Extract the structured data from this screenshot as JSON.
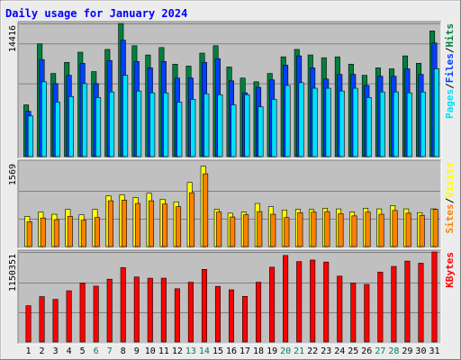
{
  "title": "Daily usage for January 2024",
  "colors": {
    "hits": "#008040",
    "files": "#0040ff",
    "pages": "#00e0ff",
    "visits": "#ffff00",
    "sites": "#ff8000",
    "kbytes": "#ff0000",
    "title": "#0000ff",
    "weekend_label": "#00805c",
    "weekday_label": "#000000",
    "panel_bg": "#c0c0c0",
    "page_bg": "#ececec"
  },
  "chart_data": [
    {
      "type": "bar",
      "panel": "top",
      "max_label": "14416",
      "ylim": [
        0,
        14416
      ],
      "categories": [
        "1",
        "2",
        "3",
        "4",
        "5",
        "6",
        "7",
        "8",
        "9",
        "10",
        "11",
        "12",
        "13",
        "14",
        "15",
        "16",
        "17",
        "18",
        "19",
        "20",
        "21",
        "22",
        "23",
        "24",
        "25",
        "26",
        "27",
        "28",
        "29",
        "30",
        "31"
      ],
      "weekend_days": [
        "6",
        "7",
        "13",
        "14",
        "20",
        "21",
        "27",
        "28"
      ],
      "series": [
        {
          "name": "Hits",
          "values": [
            5600,
            12200,
            9000,
            10200,
            11300,
            9200,
            11600,
            14400,
            12000,
            11000,
            11800,
            10000,
            9800,
            11200,
            12000,
            9700,
            8500,
            8100,
            9000,
            10800,
            11600,
            11000,
            10700,
            10800,
            10000,
            8800,
            9600,
            9500,
            10900,
            10100,
            13600
          ]
        },
        {
          "name": "Files",
          "values": [
            4900,
            10500,
            7900,
            8800,
            10100,
            7900,
            10400,
            12600,
            10300,
            9600,
            10300,
            8500,
            8500,
            10200,
            10600,
            8200,
            6900,
            7500,
            8300,
            9900,
            10900,
            9600,
            8400,
            8900,
            8900,
            7700,
            8700,
            8700,
            9500,
            8900,
            12300
          ]
        },
        {
          "name": "Pages",
          "values": [
            4400,
            8100,
            5900,
            6500,
            7900,
            6400,
            7000,
            8800,
            7100,
            6900,
            6900,
            5900,
            6200,
            6800,
            6700,
            5600,
            6700,
            5400,
            6200,
            7700,
            8000,
            7400,
            7400,
            7100,
            7400,
            6400,
            7000,
            7000,
            6900,
            7000,
            9500
          ]
        }
      ]
    },
    {
      "type": "bar",
      "panel": "middle",
      "max_label": "1569",
      "ylim": [
        0,
        1569
      ],
      "categories": [
        "1",
        "2",
        "3",
        "4",
        "5",
        "6",
        "7",
        "8",
        "9",
        "10",
        "11",
        "12",
        "13",
        "14",
        "15",
        "16",
        "17",
        "18",
        "19",
        "20",
        "21",
        "22",
        "23",
        "24",
        "25",
        "26",
        "27",
        "28",
        "29",
        "30",
        "31"
      ],
      "series": [
        {
          "name": "Visits",
          "values": [
            560,
            640,
            600,
            690,
            590,
            690,
            940,
            960,
            910,
            990,
            880,
            830,
            1190,
            1490,
            690,
            620,
            640,
            800,
            740,
            680,
            690,
            690,
            710,
            700,
            640,
            710,
            700,
            760,
            700,
            630,
            700
          ]
        },
        {
          "name": "Sites",
          "values": [
            460,
            530,
            500,
            560,
            490,
            540,
            850,
            860,
            800,
            850,
            790,
            740,
            1000,
            1350,
            640,
            550,
            590,
            650,
            600,
            540,
            630,
            640,
            650,
            610,
            570,
            640,
            600,
            670,
            620,
            580,
            690
          ]
        }
      ]
    },
    {
      "type": "bar",
      "panel": "bottom",
      "max_label": "1150351",
      "ylim": [
        0,
        1150351
      ],
      "categories": [
        "1",
        "2",
        "3",
        "4",
        "5",
        "6",
        "7",
        "8",
        "9",
        "10",
        "11",
        "12",
        "13",
        "14",
        "15",
        "16",
        "17",
        "18",
        "19",
        "20",
        "21",
        "22",
        "23",
        "24",
        "25",
        "26",
        "27",
        "28",
        "29",
        "30",
        "31"
      ],
      "series": [
        {
          "name": "KBytes",
          "values": [
            464000,
            580000,
            545000,
            655000,
            754000,
            714000,
            803000,
            951000,
            831000,
            816000,
            816000,
            681000,
            764000,
            928000,
            711000,
            667000,
            583000,
            764000,
            956000,
            1106000,
            1028000,
            1048000,
            1022000,
            842000,
            754000,
            736000,
            894000,
            966000,
            1034000,
            1007000,
            1150351
          ]
        }
      ]
    }
  ],
  "legends": {
    "top": [
      {
        "text": "Pages",
        "color": "#00e0ff"
      },
      {
        "text": "/",
        "color": "#000000"
      },
      {
        "text": "Files",
        "color": "#0040ff"
      },
      {
        "text": "/",
        "color": "#000000"
      },
      {
        "text": "Hits",
        "color": "#008040"
      }
    ],
    "middle": [
      {
        "text": "Sites",
        "color": "#ff8000"
      },
      {
        "text": "/",
        "color": "#000000"
      },
      {
        "text": "Visits",
        "color": "#ffff00"
      }
    ],
    "bottom": [
      {
        "text": "KBytes",
        "color": "#ff0000"
      }
    ]
  }
}
